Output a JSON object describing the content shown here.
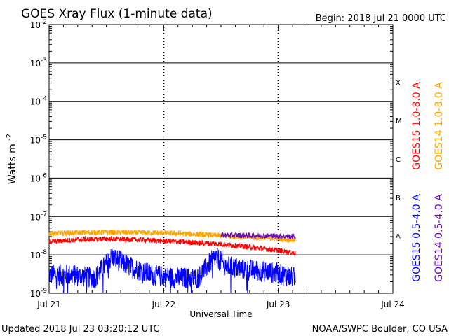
{
  "header": {
    "title": "GOES Xray Flux (1-minute data)",
    "begin": "Begin:  2018 Jul 21 0000 UTC"
  },
  "footer": {
    "updated": "Updated 2018 Jul 23 03:20:12 UTC",
    "credit": "NOAA/SWPC Boulder, CO USA"
  },
  "chart_data": {
    "type": "line",
    "title": "GOES Xray Flux (1-minute data)",
    "xlabel": "Universal Time",
    "ylabel": "Watts m",
    "ylabel_exp": "-2",
    "yscale": "log",
    "ylim": [
      1e-09,
      0.01
    ],
    "xlim_days": [
      0,
      3
    ],
    "x_tick_labels": [
      "Jul 21",
      "Jul 22",
      "Jul 23",
      "Jul 24"
    ],
    "y_ticks": [
      {
        "base": "10",
        "exp": "-2",
        "value": 0.01
      },
      {
        "base": "10",
        "exp": "-3",
        "value": 0.001
      },
      {
        "base": "10",
        "exp": "-4",
        "value": 0.0001
      },
      {
        "base": "10",
        "exp": "-5",
        "value": 1e-05
      },
      {
        "base": "10",
        "exp": "-6",
        "value": 1e-06
      },
      {
        "base": "10",
        "exp": "-7",
        "value": 1e-07
      },
      {
        "base": "10",
        "exp": "-8",
        "value": 1e-08
      },
      {
        "base": "10",
        "exp": "-9",
        "value": 1e-09
      }
    ],
    "flare_classes": [
      {
        "label": "X",
        "value": 0.0001
      },
      {
        "label": "M",
        "value": 1e-05
      },
      {
        "label": "C",
        "value": 1e-06
      },
      {
        "label": "B",
        "value": 1e-07
      },
      {
        "label": "A",
        "value": 1e-08
      }
    ],
    "grid": true,
    "series": [
      {
        "name": "GOES15 1.0-8.0 A",
        "color": "#ff0000",
        "x_days": [
          0,
          0.25,
          0.5,
          0.75,
          1.0,
          1.25,
          1.5,
          1.75,
          2.0,
          2.15
        ],
        "values": [
          2.2e-08,
          2.5e-08,
          2.6e-08,
          2.5e-08,
          2.3e-08,
          2.1e-08,
          1.9e-08,
          1.6e-08,
          1.3e-08,
          1.1e-08
        ]
      },
      {
        "name": "GOES14 1.0-8.0 A",
        "color": "#ffa500",
        "x_days": [
          0,
          0.25,
          0.5,
          0.75,
          1.0,
          1.25,
          1.5,
          1.75,
          2.0,
          2.15
        ],
        "values": [
          3.6e-08,
          3.8e-08,
          3.9e-08,
          3.8e-08,
          3.7e-08,
          3.5e-08,
          3.2e-08,
          2.9e-08,
          2.6e-08,
          2.4e-08
        ]
      },
      {
        "name": "GOES15 0.5-4.0 A",
        "color": "#0000ff",
        "x_days": [
          0,
          0.2,
          0.4,
          0.55,
          0.7,
          0.9,
          1.1,
          1.3,
          1.45,
          1.55,
          1.75,
          1.95,
          2.15
        ],
        "values": [
          3e-09,
          3e-09,
          2.5e-09,
          9e-09,
          5e-09,
          3e-09,
          2.5e-09,
          2.5e-09,
          9e-09,
          5e-09,
          4e-09,
          3.5e-09,
          2.5e-09
        ]
      },
      {
        "name": "GOES14 0.5-4.0 A",
        "color": "#6a0dad",
        "x_days": [
          1.5,
          1.75,
          2.0,
          2.15
        ],
        "values": [
          3.3e-08,
          3.2e-08,
          3.1e-08,
          3e-08
        ]
      }
    ]
  }
}
